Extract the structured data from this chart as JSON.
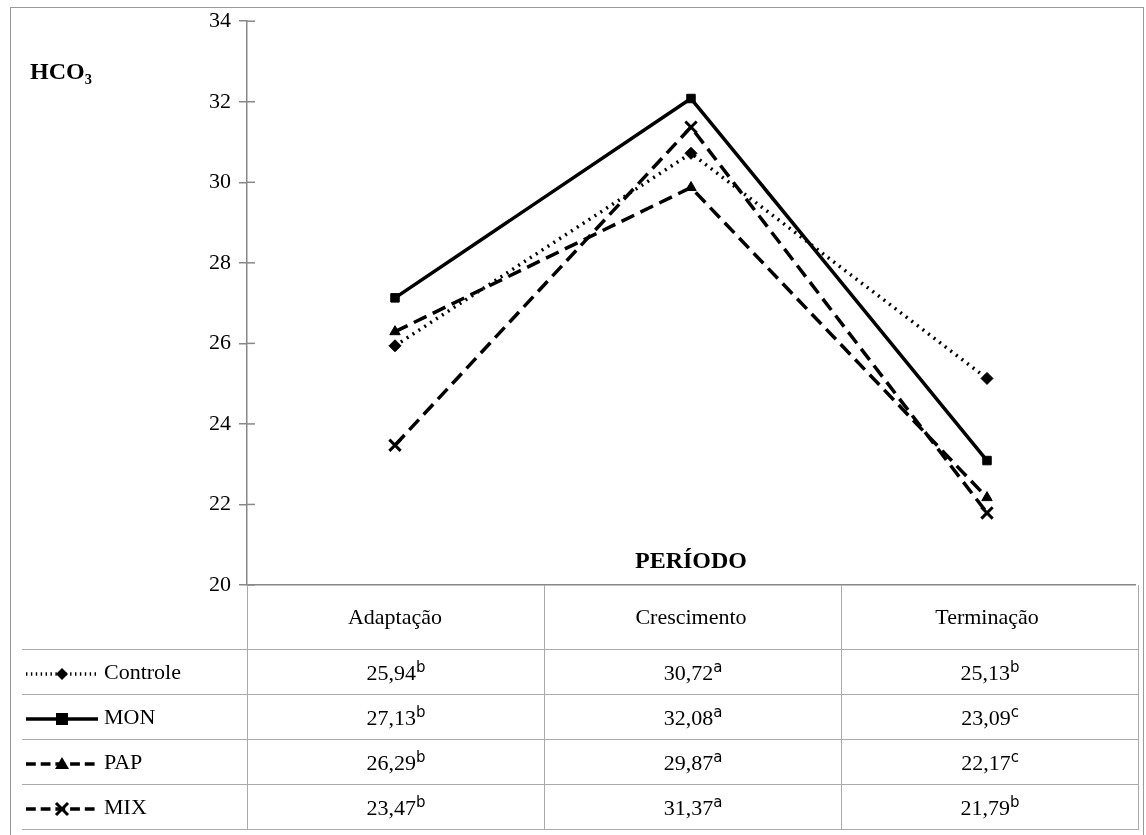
{
  "chart_data": {
    "type": "line",
    "xlabel": "PERÍODO",
    "ylabel": "HCO₃",
    "categories": [
      "Adaptação",
      "Crescimento",
      "Terminação"
    ],
    "ylim": [
      20,
      34
    ],
    "yticks": [
      20,
      22,
      24,
      26,
      28,
      30,
      32,
      34
    ],
    "grid": false,
    "legend": "bottom",
    "series": [
      {
        "name": "Controle",
        "color": "#000000",
        "marker": "diamond",
        "line_style": "dotted",
        "values": [
          25.94,
          30.72,
          25.13
        ],
        "value_labels": [
          "25,94$^{b}$",
          "30,72$^{a}$",
          "25,13$^{b}$"
        ]
      },
      {
        "name": "MON",
        "color": "#000000",
        "marker": "square",
        "line_style": "solid",
        "values": [
          27.13,
          32.08,
          23.09
        ],
        "value_labels": [
          "27,13$^{b}$",
          "32,08$^{a}$",
          "23,09$^{c}$"
        ]
      },
      {
        "name": "PAP",
        "color": "#000000",
        "marker": "triangle",
        "line_style": "dashed",
        "values": [
          26.29,
          29.87,
          22.17
        ],
        "value_labels": [
          "26,29$^{b}$",
          "29,87$^{a}$",
          "22,17$^{c}$"
        ]
      },
      {
        "name": "MIX",
        "color": "#000000",
        "marker": "cross",
        "line_style": "dashed",
        "values": [
          23.47,
          31.37,
          21.79
        ],
        "value_labels": [
          "23,47$^{b}$",
          "31,37$^{a}$",
          "21,79$^{b}$"
        ]
      }
    ]
  }
}
